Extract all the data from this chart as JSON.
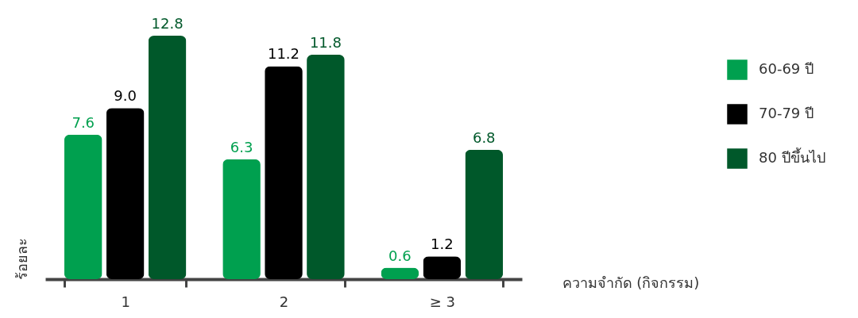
{
  "chart_data": {
    "type": "bar",
    "categories": [
      "1",
      "2",
      "≥ 3"
    ],
    "series": [
      {
        "name": "60-69 ปี",
        "color": "#00a04f",
        "values": [
          7.6,
          6.3,
          0.6
        ],
        "value_labels": [
          "7.6",
          "6.3",
          "0.6"
        ]
      },
      {
        "name": "70-79 ปี",
        "color": "#000000",
        "values": [
          9.0,
          11.2,
          1.2
        ],
        "value_labels": [
          "9.0",
          "11.2",
          "1.2"
        ]
      },
      {
        "name": "80 ปีขึ้นไป",
        "color": "#00582a",
        "values": [
          12.8,
          11.8,
          6.8
        ],
        "value_labels": [
          "12.8",
          "11.8",
          "6.8"
        ]
      }
    ],
    "ylabel": "ร้อยละ",
    "xlabel": "ความจำกัด (กิจกรรม)",
    "legend": "right",
    "tick_labels": "x"
  }
}
